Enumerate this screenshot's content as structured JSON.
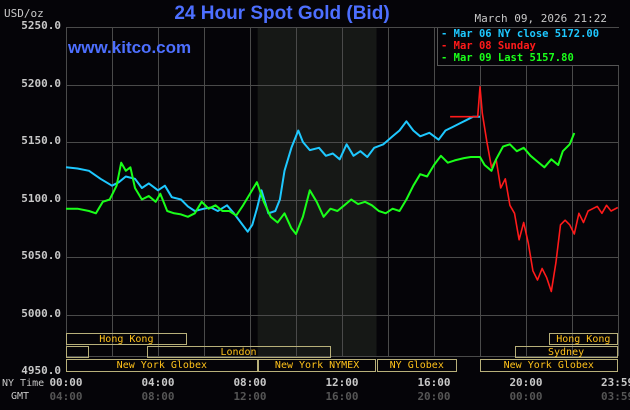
{
  "header": {
    "title": "24 Hour Spot Gold (Bid)",
    "timestamp": "March 09, 2026 21:22",
    "unit": "USD/oz",
    "website": "www.kitco.com"
  },
  "legend": [
    {
      "label": "Mar 06 NY close 5172.00",
      "color": "#1ec8ff"
    },
    {
      "label": "Mar 08 Sunday",
      "color": "#ff1a1a"
    },
    {
      "label": "Mar 09 Last 5157.80",
      "color": "#1aff1a"
    }
  ],
  "y_axis": {
    "ticks": [
      "5250.0",
      "5200.0",
      "5150.0",
      "5100.0",
      "5050.0",
      "5000.0",
      "4950.0"
    ]
  },
  "x_axis": {
    "ny_label": "NY Time",
    "gmt_label": "GMT",
    "ny_ticks": [
      "00:00",
      "04:00",
      "08:00",
      "12:00",
      "16:00",
      "20:00",
      "23:59"
    ],
    "gmt_ticks": [
      "04:00",
      "08:00",
      "12:00",
      "16:00",
      "20:00",
      "00:00",
      "03:59"
    ]
  },
  "sessions": [
    {
      "label": "Hong Kong",
      "row": 0,
      "start": "00:00",
      "end": "05:15"
    },
    {
      "label": "",
      "row": 1,
      "start": "00:00",
      "end": "01:00"
    },
    {
      "label": "London",
      "row": 1,
      "start": "03:30",
      "end": "11:30"
    },
    {
      "label": "New York Globex",
      "row": 2,
      "start": "00:00",
      "end": "08:20"
    },
    {
      "label": "New York NYMEX",
      "row": 2,
      "start": "08:20",
      "end": "13:30"
    },
    {
      "label": "NY Globex",
      "row": 2,
      "start": "13:30",
      "end": "17:00"
    },
    {
      "label": "Hong Kong",
      "row": 0,
      "start": "21:00",
      "end": "23:59"
    },
    {
      "label": "Sydney",
      "row": 1,
      "start": "19:30",
      "end": "23:59"
    },
    {
      "label": "New York Globex",
      "row": 2,
      "start": "18:00",
      "end": "23:59"
    }
  ],
  "chart_data": {
    "type": "line",
    "title": "24 Hour Spot Gold (Bid)",
    "xlabel": "NY Time",
    "ylabel": "USD/oz",
    "ylim": [
      4950,
      5250
    ],
    "xlim": [
      "00:00",
      "23:59"
    ],
    "grid": true,
    "legend_position": "top-right",
    "shaded_region": {
      "start": "08:20",
      "end": "13:30",
      "label": "New York NYMEX"
    },
    "series": [
      {
        "name": "Mar 06 NY close 5172.00",
        "color": "#1ec8ff",
        "x_hours": [
          0,
          0.5,
          1,
          1.5,
          2,
          2.3,
          2.6,
          3,
          3.3,
          3.6,
          4,
          4.3,
          4.6,
          5,
          5.3,
          5.6,
          6,
          6.3,
          6.6,
          7,
          7.3,
          7.6,
          7.9,
          8.1,
          8.3,
          8.5,
          8.8,
          9.1,
          9.3,
          9.5,
          9.8,
          10.1,
          10.3,
          10.6,
          11,
          11.3,
          11.6,
          11.9,
          12.2,
          12.5,
          12.8,
          13.1,
          13.4,
          13.8,
          14.2,
          14.5,
          14.8,
          15.1,
          15.4,
          15.8,
          16.2,
          16.5,
          16.8,
          17.1,
          17.4,
          17.7,
          18.0
        ],
        "values": [
          5128,
          5127,
          5125,
          5118,
          5112,
          5115,
          5120,
          5118,
          5110,
          5114,
          5108,
          5112,
          5102,
          5100,
          5094,
          5090,
          5092,
          5093,
          5090,
          5095,
          5088,
          5080,
          5072,
          5078,
          5092,
          5108,
          5088,
          5090,
          5100,
          5125,
          5145,
          5160,
          5150,
          5143,
          5145,
          5138,
          5140,
          5135,
          5148,
          5138,
          5142,
          5137,
          5145,
          5148,
          5155,
          5160,
          5168,
          5160,
          5155,
          5158,
          5152,
          5160,
          5163,
          5166,
          5169,
          5172,
          5172
        ]
      },
      {
        "name": "Mar 08 Sunday",
        "color": "#ff1a1a",
        "x_hours": [
          16.7,
          17.9,
          18.0,
          18.1,
          18.3,
          18.5,
          18.7,
          18.9,
          19.1,
          19.3,
          19.5,
          19.7,
          19.9,
          20.1,
          20.3,
          20.5,
          20.7,
          20.9,
          21.1,
          21.3,
          21.5,
          21.7,
          21.9,
          22.1,
          22.3,
          22.5,
          22.7,
          22.9,
          23.1,
          23.3,
          23.5,
          23.7,
          23.99
        ],
        "values": [
          5172,
          5172,
          5198,
          5175,
          5150,
          5128,
          5135,
          5110,
          5118,
          5095,
          5088,
          5065,
          5080,
          5062,
          5038,
          5030,
          5040,
          5032,
          5020,
          5045,
          5078,
          5082,
          5078,
          5070,
          5088,
          5080,
          5090,
          5092,
          5094,
          5088,
          5095,
          5090,
          5093
        ]
      },
      {
        "name": "Mar 09 Last 5157.80",
        "color": "#1aff1a",
        "x_hours": [
          0,
          0.5,
          1,
          1.3,
          1.6,
          1.9,
          2.2,
          2.4,
          2.6,
          2.8,
          3,
          3.3,
          3.6,
          3.9,
          4.1,
          4.4,
          4.7,
          5,
          5.3,
          5.6,
          5.9,
          6.2,
          6.5,
          6.8,
          7.1,
          7.4,
          7.7,
          8.0,
          8.3,
          8.6,
          8.9,
          9.2,
          9.5,
          9.8,
          10.0,
          10.3,
          10.6,
          10.9,
          11.2,
          11.5,
          11.8,
          12.1,
          12.4,
          12.7,
          13.0,
          13.3,
          13.6,
          13.9,
          14.2,
          14.5,
          14.8,
          15.1,
          15.4,
          15.7,
          16.0,
          16.3,
          16.6,
          16.9,
          17.3,
          17.6,
          18.0,
          18.2,
          18.5,
          18.7,
          19.0,
          19.3,
          19.6,
          19.9,
          20.2,
          20.5,
          20.8,
          21.1,
          21.4,
          21.6,
          21.9,
          22.1
        ],
        "values": [
          5092,
          5092,
          5090,
          5088,
          5098,
          5100,
          5112,
          5132,
          5125,
          5128,
          5110,
          5100,
          5103,
          5098,
          5105,
          5090,
          5088,
          5087,
          5085,
          5088,
          5098,
          5092,
          5095,
          5090,
          5090,
          5086,
          5095,
          5105,
          5115,
          5098,
          5085,
          5080,
          5088,
          5075,
          5070,
          5085,
          5108,
          5098,
          5085,
          5092,
          5090,
          5095,
          5100,
          5096,
          5098,
          5095,
          5090,
          5088,
          5092,
          5090,
          5100,
          5112,
          5122,
          5120,
          5130,
          5138,
          5132,
          5134,
          5136,
          5137,
          5137,
          5130,
          5125,
          5135,
          5146,
          5148,
          5142,
          5145,
          5138,
          5133,
          5128,
          5135,
          5130,
          5142,
          5148,
          5157.8
        ]
      }
    ]
  }
}
